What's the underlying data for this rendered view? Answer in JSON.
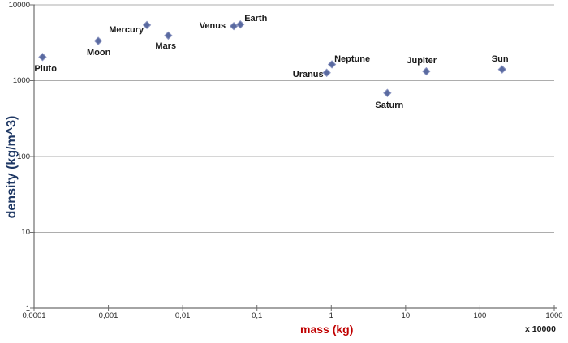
{
  "colors": {
    "background": "#FFFFFF",
    "gridline": "#ADADAD",
    "axis": "#6E6E6E",
    "tick": "#6E6E6E",
    "marker_fill": "#5A6AA0",
    "marker_stroke": "#8C96C2",
    "point_label": "#1A1A1A",
    "tick_label": "#262626",
    "x_title": "#C00000",
    "y_title": "#1F3864"
  },
  "chart_data": {
    "type": "scatter",
    "title": "",
    "xlabel": "mass (kg)",
    "x_multiplier_note": "x 10000",
    "ylabel": "density (kg/m^3)",
    "x_scale": "log",
    "y_scale": "log",
    "xlim": [
      0.0001,
      1000
    ],
    "ylim": [
      1,
      10000
    ],
    "x_tick_labels": [
      "0,0001",
      "0,001",
      "0,01",
      "0,1",
      "1",
      "10",
      "100",
      "1000"
    ],
    "y_tick_labels": [
      "1",
      "10",
      "100",
      "1000",
      "10000"
    ],
    "grid": "horizontal-only",
    "legend": "none",
    "marker": "diamond",
    "series": [
      {
        "name": "solar-system-bodies",
        "points": [
          {
            "label": "Pluto",
            "mass": 0.00013,
            "density": 2050,
            "label_align": "left",
            "label_dx": -10,
            "label_dy": 10
          },
          {
            "label": "Moon",
            "mass": 0.00073,
            "density": 3340,
            "label_align": "left",
            "label_dx": -14,
            "label_dy": 9
          },
          {
            "label": "Mercury",
            "mass": 0.0033,
            "density": 5427,
            "label_align": "right",
            "label_dx": -4,
            "label_dy": 1
          },
          {
            "label": "Mars",
            "mass": 0.0064,
            "density": 3933,
            "label_align": "left",
            "label_dx": -16,
            "label_dy": 8
          },
          {
            "label": "Venus",
            "mass": 0.0487,
            "density": 5243,
            "label_align": "right",
            "label_dx": -10,
            "label_dy": -5
          },
          {
            "label": "Earth",
            "mass": 0.0597,
            "density": 5514,
            "label_align": "left",
            "label_dx": 5,
            "label_dy": -12
          },
          {
            "label": "Uranus",
            "mass": 0.868,
            "density": 1271,
            "label_align": "right",
            "label_dx": -4,
            "label_dy": -3
          },
          {
            "label": "Neptune",
            "mass": 1.02,
            "density": 1638,
            "label_align": "left",
            "label_dx": 3,
            "label_dy": -11
          },
          {
            "label": "Saturn",
            "mass": 5.68,
            "density": 687,
            "label_align": "left",
            "label_dx": -15,
            "label_dy": 10
          },
          {
            "label": "Jupiter",
            "mass": 19,
            "density": 1326,
            "label_align": "left",
            "label_dx": -24,
            "label_dy": -18
          },
          {
            "label": "Sun",
            "mass": 199,
            "density": 1408,
            "label_align": "left",
            "label_dx": -13,
            "label_dy": -18
          }
        ]
      }
    ]
  }
}
